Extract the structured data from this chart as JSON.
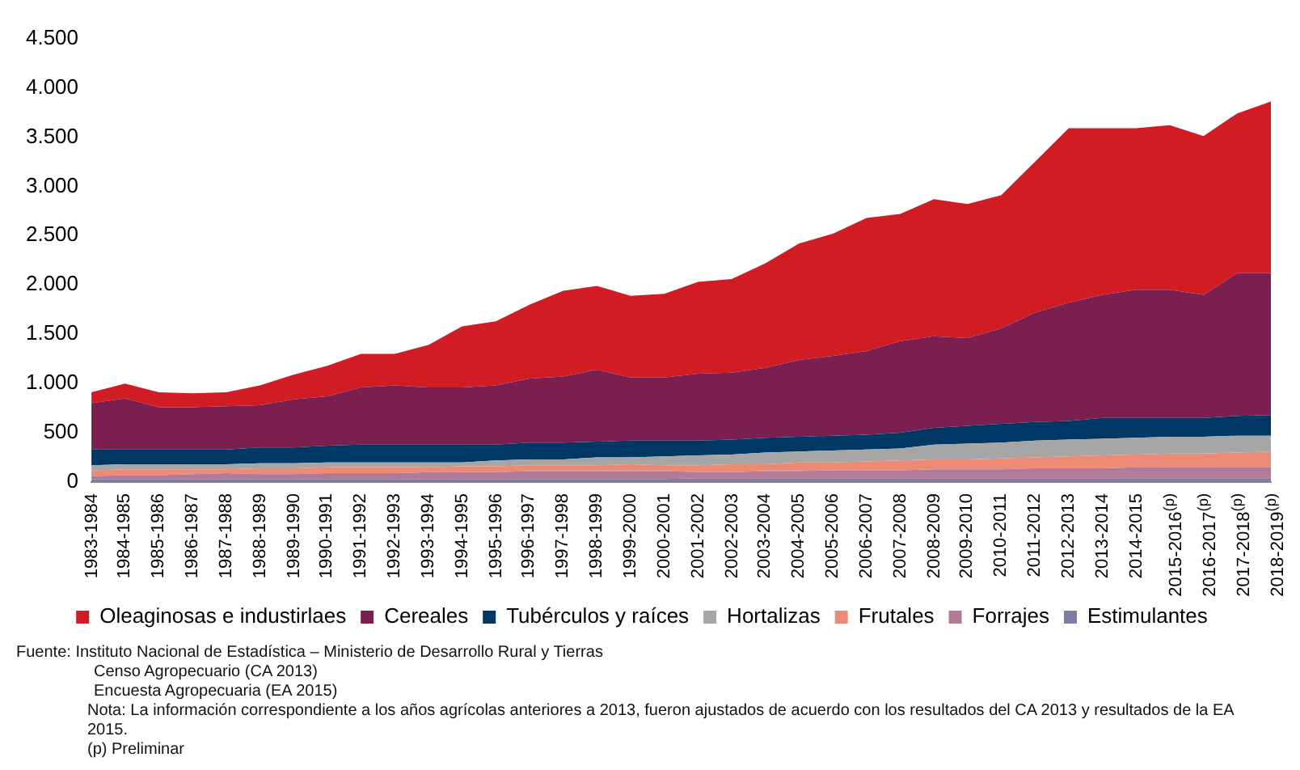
{
  "chart_data": {
    "type": "area",
    "stacked": true,
    "categories": [
      "1983-1984",
      "1984-1985",
      "1985-1986",
      "1986-1987",
      "1987-1988",
      "1988-1989",
      "1989-1990",
      "1990-1991",
      "1991-1992",
      "1992-1993",
      "1993-1994",
      "1994-1995",
      "1995-1996",
      "1996-1997",
      "1997-1998",
      "1998-1999",
      "1999-2000",
      "2000-2001",
      "2001-2002",
      "2002-2003",
      "2003-2004",
      "2004-2005",
      "2005-2006",
      "2006-2007",
      "2007-2008",
      "2008-2009",
      "2009-2010",
      "2010-2011",
      "2011-2012",
      "2012-2013",
      "2013-2014",
      "2014-2015",
      "2015-2016$^{(p)}$",
      "2016-2017$^{(p)}$",
      "2017-2018$^{(p)}$",
      "2018-2019$^{(p)}$"
    ],
    "series": [
      {
        "name": "Estimulantes",
        "color": "#7d7fa0",
        "values": [
          30,
          30,
          30,
          30,
          30,
          30,
          30,
          30,
          30,
          30,
          30,
          30,
          30,
          30,
          30,
          30,
          30,
          30,
          40,
          40,
          40,
          40,
          40,
          40,
          40,
          40,
          40,
          40,
          40,
          40,
          40,
          40,
          40,
          40,
          40,
          40
        ]
      },
      {
        "name": "Forrajes",
        "color": "#b07a98",
        "values": [
          30,
          40,
          40,
          50,
          60,
          50,
          50,
          60,
          60,
          60,
          70,
          70,
          70,
          80,
          80,
          80,
          80,
          80,
          60,
          60,
          70,
          70,
          80,
          80,
          80,
          90,
          90,
          90,
          100,
          100,
          100,
          110,
          110,
          110,
          110,
          110
        ]
      },
      {
        "name": "Frutales",
        "color": "#ec8a75",
        "values": [
          60,
          60,
          60,
          50,
          40,
          60,
          60,
          60,
          60,
          60,
          50,
          60,
          60,
          60,
          60,
          60,
          70,
          60,
          70,
          80,
          70,
          90,
          80,
          90,
          100,
          100,
          100,
          110,
          110,
          120,
          130,
          130,
          140,
          140,
          150,
          160
        ]
      },
      {
        "name": "Hortalizas",
        "color": "#a6a6a6",
        "values": [
          50,
          50,
          50,
          50,
          50,
          50,
          50,
          50,
          50,
          50,
          50,
          40,
          60,
          60,
          60,
          80,
          70,
          90,
          100,
          100,
          120,
          110,
          120,
          120,
          120,
          150,
          160,
          160,
          170,
          170,
          170,
          170,
          170,
          170,
          170,
          160
        ]
      },
      {
        "name": "Tubérculos y raíces",
        "color": "#003865",
        "values": [
          160,
          150,
          150,
          150,
          150,
          160,
          160,
          170,
          180,
          180,
          180,
          180,
          160,
          170,
          170,
          160,
          170,
          160,
          150,
          150,
          150,
          150,
          150,
          150,
          160,
          170,
          180,
          190,
          190,
          190,
          210,
          200,
          190,
          190,
          200,
          210
        ]
      },
      {
        "name": "Cereales",
        "color": "#7a1f4f",
        "values": [
          470,
          520,
          430,
          430,
          440,
          430,
          490,
          500,
          580,
          600,
          580,
          580,
          600,
          650,
          670,
          730,
          640,
          640,
          680,
          680,
          710,
          780,
          810,
          850,
          930,
          930,
          890,
          970,
          1110,
          1200,
          1250,
          1300,
          1300,
          1250,
          1450,
          1440
        ]
      },
      {
        "name": "Oleaginosas e industirlaes",
        "color": "#d21c24",
        "values": [
          110,
          150,
          150,
          140,
          140,
          200,
          250,
          310,
          340,
          320,
          430,
          620,
          650,
          750,
          870,
          850,
          830,
          850,
          930,
          950,
          1060,
          1180,
          1240,
          1350,
          1290,
          1390,
          1360,
          1350,
          1530,
          1770,
          1690,
          1640,
          1670,
          1610,
          1620,
          1740
        ]
      }
    ],
    "ylim": [
      0,
      4500
    ],
    "yticks": [
      0,
      500,
      {
        "value": 1000,
        "label": "1.000"
      },
      {
        "value": 1500,
        "label": "1.500"
      },
      {
        "value": 2000,
        "label": "2.000"
      },
      {
        "value": 2500,
        "label": "2.500"
      },
      {
        "value": 3000,
        "label": "3.000"
      },
      {
        "value": 3500,
        "label": "3.500"
      },
      {
        "value": 4000,
        "label": "4.000"
      },
      {
        "value": 4500,
        "label": "4.500"
      }
    ],
    "grid": false,
    "legend": "bottom",
    "marker": "none",
    "annotations": [
      "Fuente: Instituto Nacional de Estadística – Ministerio de Desarrollo Rural y Tierras",
      "Censo Agropecuario (CA 2013)",
      "Encuesta Agropecuaria (EA 2015)",
      "Nota: La información correspondiente a los años agrícolas anteriores a 2013, fueron ajustados de acuerdo con los resultados del CA 2013 y resultados de la EA 2015.",
      "(p) Preliminar"
    ]
  }
}
